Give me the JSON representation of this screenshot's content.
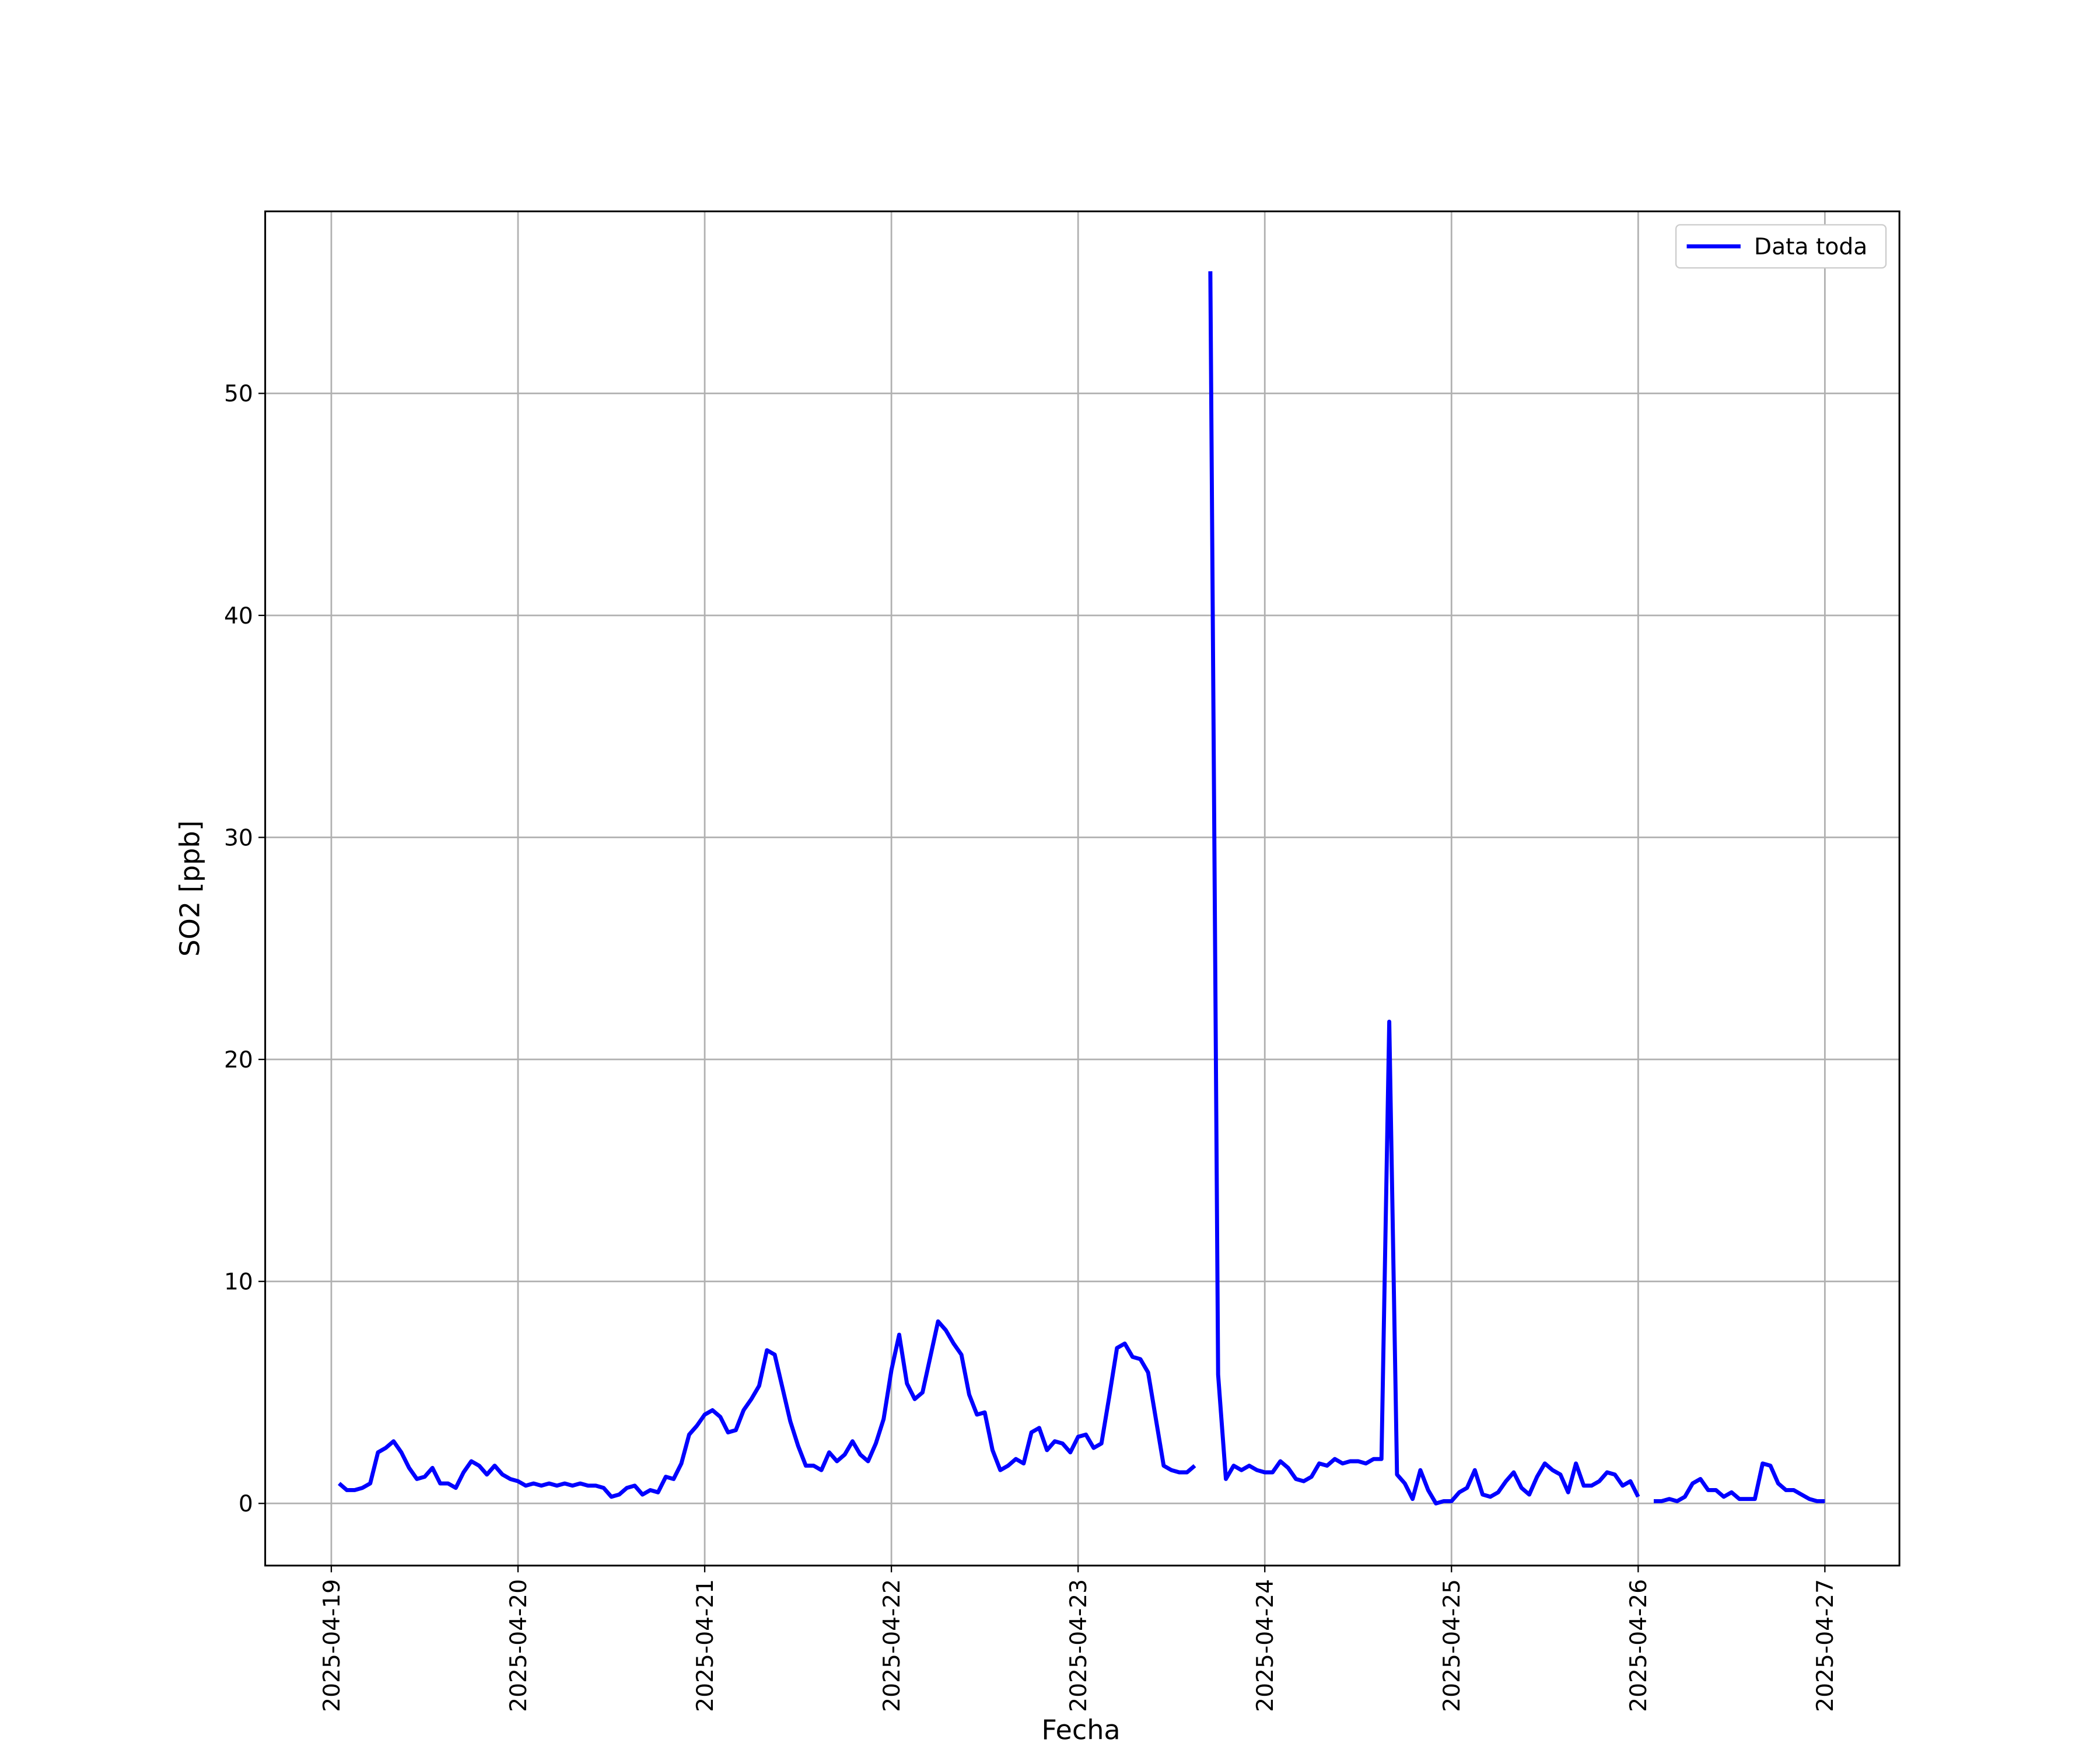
{
  "chart_data": {
    "type": "line",
    "xlabel": "Fecha",
    "ylabel": "SO2 [ppb]",
    "x": [
      "2025-04-19 01:00",
      "2025-04-19 02:00",
      "2025-04-19 03:00",
      "2025-04-19 04:00",
      "2025-04-19 05:00",
      "2025-04-19 06:00",
      "2025-04-19 07:00",
      "2025-04-19 08:00",
      "2025-04-19 09:00",
      "2025-04-19 10:00",
      "2025-04-19 11:00",
      "2025-04-19 12:00",
      "2025-04-19 13:00",
      "2025-04-19 14:00",
      "2025-04-19 15:00",
      "2025-04-19 16:00",
      "2025-04-19 17:00",
      "2025-04-19 18:00",
      "2025-04-19 19:00",
      "2025-04-19 20:00",
      "2025-04-19 21:00",
      "2025-04-19 22:00",
      "2025-04-19 23:00",
      "2025-04-20 00:00",
      "2025-04-20 01:00",
      "2025-04-20 02:00",
      "2025-04-20 03:00",
      "2025-04-20 04:00",
      "2025-04-20 05:00",
      "2025-04-20 06:00",
      "2025-04-20 07:00",
      "2025-04-20 08:00",
      "2025-04-20 09:00",
      "2025-04-20 10:00",
      "2025-04-20 11:00",
      "2025-04-20 12:00",
      "2025-04-20 13:00",
      "2025-04-20 14:00",
      "2025-04-20 15:00",
      "2025-04-20 16:00",
      "2025-04-20 17:00",
      "2025-04-20 18:00",
      "2025-04-20 19:00",
      "2025-04-20 20:00",
      "2025-04-20 21:00",
      "2025-04-20 22:00",
      "2025-04-20 23:00",
      "2025-04-21 00:00",
      "2025-04-21 01:00",
      "2025-04-21 02:00",
      "2025-04-21 03:00",
      "2025-04-21 04:00",
      "2025-04-21 05:00",
      "2025-04-21 06:00",
      "2025-04-21 07:00",
      "2025-04-21 08:00",
      "2025-04-21 09:00",
      "2025-04-21 10:00",
      "2025-04-21 11:00",
      "2025-04-21 12:00",
      "2025-04-21 13:00",
      "2025-04-21 14:00",
      "2025-04-21 15:00",
      "2025-04-21 16:00",
      "2025-04-21 17:00",
      "2025-04-21 18:00",
      "2025-04-21 19:00",
      "2025-04-21 20:00",
      "2025-04-21 21:00",
      "2025-04-21 22:00",
      "2025-04-21 23:00",
      "2025-04-22 00:00",
      "2025-04-22 01:00",
      "2025-04-22 02:00",
      "2025-04-22 03:00",
      "2025-04-22 04:00",
      "2025-04-22 05:00",
      "2025-04-22 06:00",
      "2025-04-22 07:00",
      "2025-04-22 08:00",
      "2025-04-22 09:00",
      "2025-04-22 10:00",
      "2025-04-22 11:00",
      "2025-04-22 12:00",
      "2025-04-22 13:00",
      "2025-04-22 14:00",
      "2025-04-22 15:00",
      "2025-04-22 16:00",
      "2025-04-22 17:00",
      "2025-04-22 18:00",
      "2025-04-22 19:00",
      "2025-04-22 20:00",
      "2025-04-22 21:00",
      "2025-04-22 22:00",
      "2025-04-22 23:00",
      "2025-04-23 00:00",
      "2025-04-23 01:00",
      "2025-04-23 02:00",
      "2025-04-23 03:00",
      "2025-04-23 04:00",
      "2025-04-23 05:00",
      "2025-04-23 06:00",
      "2025-04-23 07:00",
      "2025-04-23 08:00",
      "2025-04-23 09:00",
      "2025-04-23 10:00",
      "2025-04-23 11:00",
      "2025-04-23 12:00",
      "2025-04-23 13:00",
      "2025-04-23 14:00",
      "2025-04-23 15:00",
      "2025-04-23 16:00",
      "2025-04-23 17:00",
      "2025-04-23 18:00",
      "2025-04-23 19:00",
      "2025-04-23 20:00",
      "2025-04-23 21:00",
      "2025-04-23 22:00",
      "2025-04-23 23:00",
      "2025-04-24 00:00",
      "2025-04-24 01:00",
      "2025-04-24 02:00",
      "2025-04-24 03:00",
      "2025-04-24 04:00",
      "2025-04-24 05:00",
      "2025-04-24 06:00",
      "2025-04-24 07:00",
      "2025-04-24 08:00",
      "2025-04-24 09:00",
      "2025-04-24 10:00",
      "2025-04-24 11:00",
      "2025-04-24 12:00",
      "2025-04-24 13:00",
      "2025-04-24 14:00",
      "2025-04-24 15:00",
      "2025-04-24 16:00",
      "2025-04-24 17:00",
      "2025-04-24 18:00",
      "2025-04-24 19:00",
      "2025-04-24 20:00",
      "2025-04-24 21:00",
      "2025-04-24 22:00",
      "2025-04-24 23:00",
      "2025-04-25 00:00",
      "2025-04-25 01:00",
      "2025-04-25 02:00",
      "2025-04-25 03:00",
      "2025-04-25 04:00",
      "2025-04-25 05:00",
      "2025-04-25 06:00",
      "2025-04-25 07:00",
      "2025-04-25 08:00",
      "2025-04-25 09:00",
      "2025-04-25 10:00",
      "2025-04-25 11:00",
      "2025-04-25 12:00",
      "2025-04-25 13:00",
      "2025-04-25 14:00",
      "2025-04-25 15:00",
      "2025-04-25 16:00",
      "2025-04-25 17:00",
      "2025-04-25 18:00",
      "2025-04-25 19:00",
      "2025-04-25 20:00",
      "2025-04-25 21:00",
      "2025-04-25 22:00",
      "2025-04-25 23:00",
      "2025-04-26 00:00",
      "2025-04-26 01:00",
      "2025-04-26 02:00",
      "2025-04-26 03:00",
      "2025-04-26 04:00",
      "2025-04-26 05:00",
      "2025-04-26 06:00",
      "2025-04-26 07:00",
      "2025-04-26 08:00",
      "2025-04-26 09:00",
      "2025-04-26 10:00",
      "2025-04-26 11:00",
      "2025-04-26 12:00",
      "2025-04-26 13:00",
      "2025-04-26 14:00",
      "2025-04-26 15:00",
      "2025-04-26 16:00",
      "2025-04-26 17:00",
      "2025-04-26 18:00",
      "2025-04-26 19:00",
      "2025-04-26 20:00",
      "2025-04-26 21:00",
      "2025-04-26 22:00",
      "2025-04-26 23:00",
      "2025-04-27 00:00"
    ],
    "series": [
      {
        "name": "Data toda",
        "color": "#0000ff",
        "values": [
          0.9,
          0.6,
          0.6,
          0.7,
          0.9,
          2.3,
          2.5,
          2.8,
          2.3,
          1.6,
          1.1,
          1.2,
          1.6,
          0.9,
          0.9,
          0.7,
          1.4,
          1.9,
          1.7,
          1.3,
          1.7,
          1.3,
          1.1,
          1.0,
          0.8,
          0.9,
          0.8,
          0.9,
          0.8,
          0.9,
          0.8,
          0.9,
          0.8,
          0.8,
          0.7,
          0.3,
          0.4,
          0.7,
          0.8,
          0.4,
          0.6,
          0.5,
          1.2,
          1.1,
          1.8,
          3.1,
          3.5,
          4.0,
          4.2,
          3.9,
          3.2,
          3.3,
          4.2,
          4.7,
          5.3,
          6.9,
          6.7,
          5.2,
          3.7,
          2.6,
          1.7,
          1.7,
          1.5,
          2.3,
          1.9,
          2.2,
          2.8,
          2.2,
          1.9,
          2.7,
          3.8,
          6.0,
          7.6,
          5.4,
          4.7,
          5.0,
          6.6,
          8.2,
          7.8,
          7.2,
          6.7,
          4.9,
          4.0,
          4.1,
          2.4,
          1.5,
          1.7,
          2.0,
          1.8,
          3.2,
          3.4,
          2.4,
          2.8,
          2.7,
          2.3,
          3.0,
          3.1,
          2.5,
          2.7,
          4.8,
          7.0,
          7.2,
          6.6,
          6.5,
          5.9,
          3.8,
          1.7,
          1.5,
          1.4,
          1.4,
          1.7,
          null,
          55.5,
          5.8,
          1.1,
          1.7,
          1.5,
          1.7,
          1.5,
          1.4,
          1.4,
          1.9,
          1.6,
          1.1,
          1.0,
          1.2,
          1.8,
          1.7,
          2.0,
          1.8,
          1.9,
          1.9,
          1.8,
          2.0,
          2.0,
          21.7,
          1.3,
          0.9,
          0.2,
          1.5,
          0.6,
          0.0,
          0.1,
          0.1,
          0.5,
          0.7,
          1.5,
          0.4,
          0.3,
          0.5,
          1.0,
          1.4,
          0.7,
          0.4,
          1.2,
          1.8,
          1.5,
          1.3,
          0.5,
          1.8,
          0.8,
          0.8,
          1.0,
          1.4,
          1.3,
          0.8,
          1.0,
          0.3,
          null,
          0.1,
          0.1,
          0.2,
          0.1,
          0.3,
          0.9,
          1.1,
          0.6,
          0.6,
          0.3,
          0.5,
          0.2,
          0.2,
          0.2,
          1.8,
          1.7,
          0.9,
          0.6,
          0.6,
          0.4,
          0.2,
          0.1,
          0.1
        ]
      }
    ],
    "xlim": [
      "2025-04-18 15:30",
      "2025-04-27 09:35"
    ],
    "xticks": [
      "2025-04-19",
      "2025-04-20",
      "2025-04-21",
      "2025-04-22",
      "2025-04-23",
      "2025-04-24",
      "2025-04-25",
      "2025-04-26",
      "2025-04-27"
    ],
    "ylim": [
      -2.8,
      58.2
    ],
    "yticks": [
      0,
      10,
      20,
      30,
      40,
      50
    ],
    "grid": true,
    "legend": "upper right"
  }
}
